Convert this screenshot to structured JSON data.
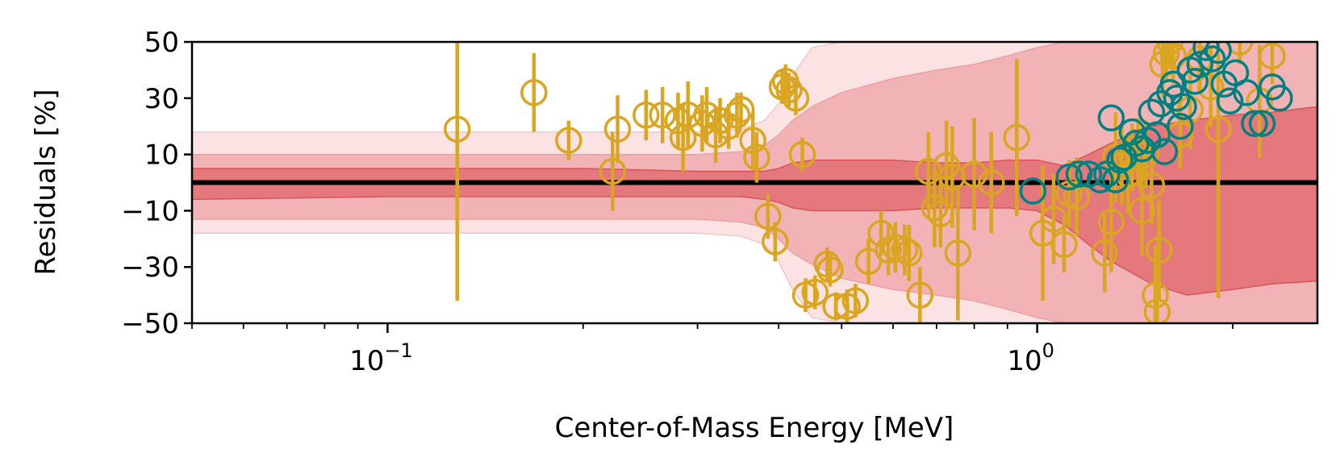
{
  "chart_data": {
    "type": "scatter",
    "title": "",
    "xlabel": "Center-of-Mass Energy [MeV]",
    "ylabel": "Residuals [%]",
    "xscale": "log",
    "xlim": [
      0.05,
      2.7
    ],
    "ylim": [
      -50,
      50
    ],
    "yticks": [
      50,
      30,
      10,
      -10,
      -30,
      -50
    ],
    "ytick_labels": [
      "50",
      "30",
      "10",
      "−10",
      "−30",
      "−50"
    ],
    "xticks_major": [
      0.1,
      1.0
    ],
    "xtick_label_base": [
      "10",
      "10"
    ],
    "xtick_label_exp": [
      "−1",
      "0"
    ],
    "grid": false,
    "reference_line": 0,
    "colors": {
      "series_gold": "#DAA520",
      "series_teal": "#008080",
      "band_light": "#fbe3e4",
      "band_mid": "#f1b3b6",
      "band_dark": "#e5787c",
      "band_edge": "#d9545a"
    },
    "bands": {
      "x": [
        0.05,
        0.1,
        0.2,
        0.3,
        0.35,
        0.38,
        0.4,
        0.42,
        0.45,
        0.5,
        0.6,
        0.7,
        0.8,
        0.9,
        1.0,
        1.1,
        1.2,
        1.3,
        1.5,
        1.7,
        2.0,
        2.3,
        2.7
      ],
      "outer_upper": [
        18,
        18,
        18,
        18,
        19,
        22,
        28,
        38,
        48,
        50,
        50,
        50,
        50,
        50,
        50,
        50,
        50,
        50,
        50,
        50,
        50,
        50,
        50
      ],
      "outer_lower": [
        -18,
        -18,
        -18,
        -18,
        -19,
        -22,
        -28,
        -38,
        -48,
        -50,
        -50,
        -50,
        -50,
        -50,
        -50,
        -50,
        -50,
        -50,
        -50,
        -50,
        -50,
        -50,
        -50
      ],
      "mid_upper": [
        10,
        10,
        10,
        10,
        11,
        13,
        17,
        22,
        27,
        32,
        37,
        40,
        42,
        45,
        48,
        50,
        50,
        50,
        50,
        50,
        50,
        50,
        50
      ],
      "mid_lower": [
        -13,
        -13,
        -13,
        -13,
        -14,
        -16,
        -20,
        -25,
        -29,
        -34,
        -38,
        -40,
        -42,
        -45,
        -48,
        -50,
        -50,
        -50,
        -50,
        -50,
        -50,
        -50,
        -50
      ],
      "inner_upper": [
        5,
        5,
        5,
        4,
        4,
        4,
        5,
        7,
        8,
        8,
        8,
        7,
        7,
        8,
        8,
        6,
        10,
        14,
        20,
        22,
        24,
        25,
        27
      ],
      "inner_lower": [
        -6,
        -5,
        -5,
        -5,
        -5,
        -6,
        -7,
        -9,
        -10,
        -10,
        -10,
        -9,
        -9,
        -9,
        -10,
        -15,
        -22,
        -28,
        -36,
        -40,
        -38,
        -36,
        -35
      ]
    },
    "series": [
      {
        "color": "gold",
        "points": [
          {
            "x": 0.128,
            "y": 19,
            "err": 61
          },
          {
            "x": 0.168,
            "y": 32,
            "err": 14
          },
          {
            "x": 0.19,
            "y": 15,
            "err": 7
          },
          {
            "x": 0.222,
            "y": 4,
            "err": 14
          },
          {
            "x": 0.226,
            "y": 19,
            "err": 12
          },
          {
            "x": 0.25,
            "y": 24,
            "err": 9
          },
          {
            "x": 0.265,
            "y": 24,
            "err": 10
          },
          {
            "x": 0.28,
            "y": 22,
            "err": 10
          },
          {
            "x": 0.285,
            "y": 16,
            "err": 12
          },
          {
            "x": 0.29,
            "y": 24,
            "err": 12
          },
          {
            "x": 0.305,
            "y": 21,
            "err": 10
          },
          {
            "x": 0.31,
            "y": 24,
            "err": 10
          },
          {
            "x": 0.32,
            "y": 17,
            "err": 10
          },
          {
            "x": 0.325,
            "y": 22,
            "err": 8
          },
          {
            "x": 0.335,
            "y": 20,
            "err": 8
          },
          {
            "x": 0.345,
            "y": 24,
            "err": 8
          },
          {
            "x": 0.35,
            "y": 26,
            "err": 6
          },
          {
            "x": 0.365,
            "y": 15,
            "err": 10
          },
          {
            "x": 0.37,
            "y": 9,
            "err": 9
          },
          {
            "x": 0.385,
            "y": -12,
            "err": 8
          },
          {
            "x": 0.395,
            "y": -21,
            "err": 7
          },
          {
            "x": 0.405,
            "y": 34,
            "err": 6
          },
          {
            "x": 0.41,
            "y": 36,
            "err": 6
          },
          {
            "x": 0.415,
            "y": 33,
            "err": 6
          },
          {
            "x": 0.425,
            "y": 30,
            "err": 6
          },
          {
            "x": 0.435,
            "y": 10,
            "err": 6
          },
          {
            "x": 0.44,
            "y": -40,
            "err": 6
          },
          {
            "x": 0.455,
            "y": -39,
            "err": 6
          },
          {
            "x": 0.475,
            "y": -29,
            "err": 6
          },
          {
            "x": 0.48,
            "y": -31,
            "err": 6
          },
          {
            "x": 0.49,
            "y": -44,
            "err": 5
          },
          {
            "x": 0.51,
            "y": -44,
            "err": 6
          },
          {
            "x": 0.525,
            "y": -42,
            "err": 6
          },
          {
            "x": 0.55,
            "y": -28,
            "err": 8
          },
          {
            "x": 0.575,
            "y": -18,
            "err": 8
          },
          {
            "x": 0.59,
            "y": -24,
            "err": 9
          },
          {
            "x": 0.605,
            "y": -23,
            "err": 9
          },
          {
            "x": 0.625,
            "y": -24,
            "err": 9
          },
          {
            "x": 0.635,
            "y": -25,
            "err": 10
          },
          {
            "x": 0.66,
            "y": -40,
            "err": 10
          },
          {
            "x": 0.68,
            "y": 4,
            "err": 14
          },
          {
            "x": 0.695,
            "y": -9,
            "err": 14
          },
          {
            "x": 0.71,
            "y": -11,
            "err": 12
          },
          {
            "x": 0.725,
            "y": 6,
            "err": 16
          },
          {
            "x": 0.74,
            "y": 2,
            "err": 18
          },
          {
            "x": 0.755,
            "y": -25,
            "err": 24
          },
          {
            "x": 0.8,
            "y": 3,
            "err": 20
          },
          {
            "x": 0.85,
            "y": 0,
            "err": 18
          },
          {
            "x": 0.93,
            "y": 16,
            "err": 28
          },
          {
            "x": 1.02,
            "y": -18,
            "err": 24
          },
          {
            "x": 1.06,
            "y": -13,
            "err": 16
          },
          {
            "x": 1.1,
            "y": -22,
            "err": 10
          },
          {
            "x": 1.12,
            "y": -4,
            "err": 12
          },
          {
            "x": 1.15,
            "y": -5,
            "err": 14
          },
          {
            "x": 1.27,
            "y": -25,
            "err": 14
          },
          {
            "x": 1.3,
            "y": -14,
            "err": 18
          },
          {
            "x": 1.32,
            "y": 9,
            "err": 16
          },
          {
            "x": 1.35,
            "y": 6,
            "err": 14
          },
          {
            "x": 1.38,
            "y": 3,
            "err": 14
          },
          {
            "x": 1.4,
            "y": 9,
            "err": 12
          },
          {
            "x": 1.43,
            "y": 11,
            "err": 12
          },
          {
            "x": 1.45,
            "y": -10,
            "err": 16
          },
          {
            "x": 1.47,
            "y": 10,
            "err": 12
          },
          {
            "x": 1.5,
            "y": -1,
            "err": 14
          },
          {
            "x": 1.52,
            "y": -40,
            "err": 18
          },
          {
            "x": 1.54,
            "y": -24,
            "err": 18
          },
          {
            "x": 1.53,
            "y": -46,
            "err": 10
          },
          {
            "x": 1.56,
            "y": 42,
            "err": 12
          },
          {
            "x": 1.58,
            "y": 46,
            "err": 10
          },
          {
            "x": 1.6,
            "y": 50,
            "err": 8
          },
          {
            "x": 1.62,
            "y": 45,
            "err": 10
          },
          {
            "x": 1.66,
            "y": 17,
            "err": 12
          },
          {
            "x": 1.72,
            "y": 26,
            "err": 14
          },
          {
            "x": 1.78,
            "y": 44,
            "err": 12
          },
          {
            "x": 1.85,
            "y": 34,
            "err": 14
          },
          {
            "x": 1.9,
            "y": 19,
            "err": 60
          },
          {
            "x": 2.05,
            "y": 50,
            "err": 8
          },
          {
            "x": 2.2,
            "y": 29,
            "err": 20
          },
          {
            "x": 2.3,
            "y": 45,
            "err": 10
          }
        ]
      },
      {
        "color": "teal",
        "points": [
          {
            "x": 0.985,
            "y": -3
          },
          {
            "x": 1.12,
            "y": 2
          },
          {
            "x": 1.16,
            "y": 3
          },
          {
            "x": 1.2,
            "y": 3
          },
          {
            "x": 1.25,
            "y": 1
          },
          {
            "x": 1.28,
            "y": 3
          },
          {
            "x": 1.3,
            "y": 23
          },
          {
            "x": 1.32,
            "y": 1
          },
          {
            "x": 1.34,
            "y": 8
          },
          {
            "x": 1.36,
            "y": 9
          },
          {
            "x": 1.4,
            "y": 18
          },
          {
            "x": 1.42,
            "y": 14
          },
          {
            "x": 1.45,
            "y": 12
          },
          {
            "x": 1.48,
            "y": 15
          },
          {
            "x": 1.5,
            "y": 25
          },
          {
            "x": 1.53,
            "y": 17
          },
          {
            "x": 1.55,
            "y": 28
          },
          {
            "x": 1.57,
            "y": 11
          },
          {
            "x": 1.6,
            "y": 32
          },
          {
            "x": 1.62,
            "y": 35
          },
          {
            "x": 1.64,
            "y": 30
          },
          {
            "x": 1.66,
            "y": 20
          },
          {
            "x": 1.68,
            "y": 27
          },
          {
            "x": 1.72,
            "y": 40
          },
          {
            "x": 1.75,
            "y": 36
          },
          {
            "x": 1.78,
            "y": 42
          },
          {
            "x": 1.82,
            "y": 48
          },
          {
            "x": 1.86,
            "y": 44
          },
          {
            "x": 1.9,
            "y": 47
          },
          {
            "x": 1.94,
            "y": 35
          },
          {
            "x": 1.98,
            "y": 29
          },
          {
            "x": 2.02,
            "y": 39
          },
          {
            "x": 2.1,
            "y": 32
          },
          {
            "x": 2.16,
            "y": 21
          },
          {
            "x": 2.22,
            "y": 21
          },
          {
            "x": 2.3,
            "y": 34
          },
          {
            "x": 2.36,
            "y": 30
          }
        ]
      }
    ]
  }
}
